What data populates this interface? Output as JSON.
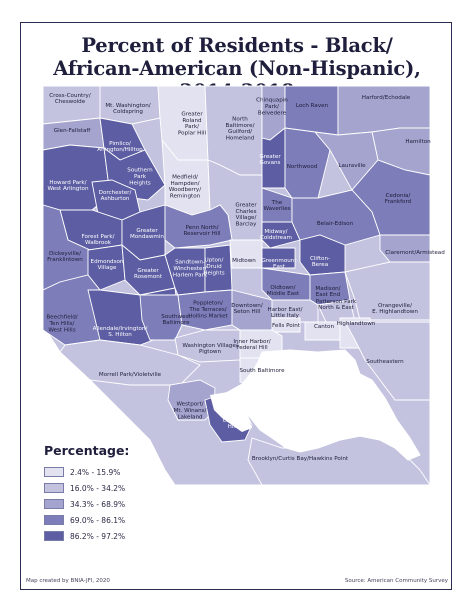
{
  "title": {
    "line1": "Percent of Residents - Black/",
    "line2": "African-American (Non-Hispanic), 2014-2018"
  },
  "legend": {
    "title": "Percentage:",
    "classes": [
      {
        "label": "2.4% - 15.9%",
        "color": "#e2e2f0"
      },
      {
        "label": "16.0% - 34.2%",
        "color": "#c3c3e0"
      },
      {
        "label": "34.3% - 68.9%",
        "color": "#a4a4cf"
      },
      {
        "label": "69.0% - 86.1%",
        "color": "#7d7db9"
      },
      {
        "label": "86.2% - 97.2%",
        "color": "#5d5da3"
      }
    ]
  },
  "colors": {
    "water": "#ffffff",
    "border": "#ffffff",
    "frame": "#2b2b50"
  },
  "neighborhoods": [
    {
      "name": "Cross-Country/\nCheswolde",
      "class": 1
    },
    {
      "name": "Mt. Washington/\nColdspring",
      "class": 1
    },
    {
      "name": "Greater\nRoland\nPark/\nPoplar Hill",
      "class": 0
    },
    {
      "name": "North\nBaltimore/\nGuilford/\nHomeland",
      "class": 1
    },
    {
      "name": "Chinquapin\nPark/\nBelvedere",
      "class": 2
    },
    {
      "name": "Loch Raven",
      "class": 3
    },
    {
      "name": "Harford/Echodale",
      "class": 2
    },
    {
      "name": "Glen-Fallstaff",
      "class": 2
    },
    {
      "name": "Pimlico/\nArlington/Hilltop",
      "class": 4
    },
    {
      "name": "Hamilton",
      "class": 2
    },
    {
      "name": "Greater\nGovans",
      "class": 4
    },
    {
      "name": "Northwood",
      "class": 3
    },
    {
      "name": "Lauraville",
      "class": 2
    },
    {
      "name": "Howard Park/\nWest Arlington",
      "class": 4
    },
    {
      "name": "Southern\nPark\nHeights",
      "class": 4
    },
    {
      "name": "Dorchester/\nAshburton",
      "class": 4
    },
    {
      "name": "Medfield/\nHampden/\nWoodberry/\nRemington",
      "class": 0
    },
    {
      "name": "Cedonia/\nFrankford",
      "class": 3
    },
    {
      "name": "The\nWaverlies",
      "class": 3
    },
    {
      "name": "Greater\nCharles\nVillage/\nBarclay",
      "class": 1
    },
    {
      "name": "Forest Park/\nWalbrook",
      "class": 4
    },
    {
      "name": "Greater\nMondawmin",
      "class": 4
    },
    {
      "name": "Penn North/\nReservoir Hill",
      "class": 3
    },
    {
      "name": "Midway/\nColdstream",
      "class": 4
    },
    {
      "name": "Belair-Edison",
      "class": 3
    },
    {
      "name": "Claremont/Armistead",
      "class": 2
    },
    {
      "name": "Dickeyville/\nFranklintown",
      "class": 3
    },
    {
      "name": "Edmondson\nVillage",
      "class": 4
    },
    {
      "name": "Greater\nRosemont",
      "class": 4
    },
    {
      "name": "Sandtown-\nWinchester/\nHarlem Park",
      "class": 4
    },
    {
      "name": "Upton/\nDruid\nHeights",
      "class": 4
    },
    {
      "name": "Midtown",
      "class": 0
    },
    {
      "name": "Greenmount\nEast",
      "class": 4
    },
    {
      "name": "Clifton-\nBerea",
      "class": 4
    },
    {
      "name": "Oldtown/\nMiddle East",
      "class": 3
    },
    {
      "name": "Madison/\nEast End",
      "class": 3
    },
    {
      "name": "Patterson Park\nNorth & East",
      "class": 1
    },
    {
      "name": "Orangeville/\nE. Highlandtown",
      "class": 1
    },
    {
      "name": "Beechfield/\nTen Hills/\nWest Hills",
      "class": 3
    },
    {
      "name": "Allendale/Irvington/\nS. Hilton",
      "class": 4
    },
    {
      "name": "Southwest\nBaltimore",
      "class": 3
    },
    {
      "name": "Poppleton/\nThe Terraces/\nHollins Market",
      "class": 3
    },
    {
      "name": "Downtown/\nSeton Hill",
      "class": 2
    },
    {
      "name": "Harbor East/\nLittle Italy",
      "class": 1
    },
    {
      "name": "Fells Point",
      "class": 0
    },
    {
      "name": "Canton",
      "class": 0
    },
    {
      "name": "Highlandtown",
      "class": 0
    },
    {
      "name": "Washington Village/\nPigtown",
      "class": 1
    },
    {
      "name": "Inner Harbor/\nFederal Hill",
      "class": 0
    },
    {
      "name": "Morrell Park/Violetville",
      "class": 1
    },
    {
      "name": "South Baltimore",
      "class": 0
    },
    {
      "name": "Southeastern",
      "class": 1
    },
    {
      "name": "Westport/\nMt. Winans/\nLakeland",
      "class": 2
    },
    {
      "name": "Cherry\nHill",
      "class": 4
    },
    {
      "name": "Brooklyn/Curtis Bay/Hawkins Point",
      "class": 1
    }
  ],
  "credits": {
    "left": "Map created by BNIA-JFI, 2020",
    "right": "Source: American Community Survey"
  }
}
